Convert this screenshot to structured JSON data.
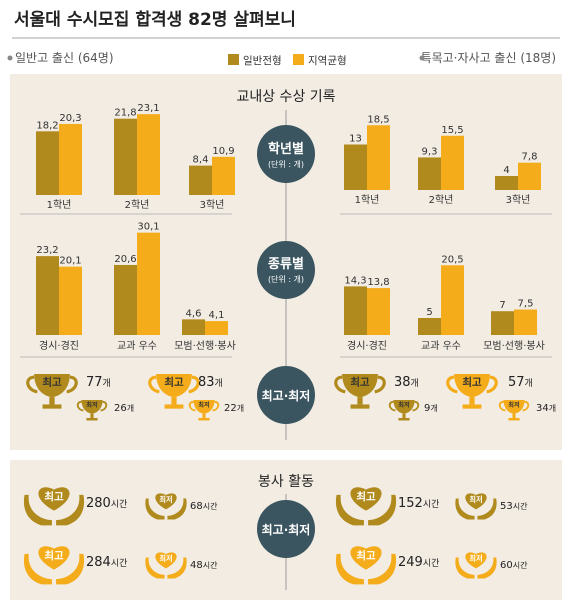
{
  "title": "서울대 수시모집 합격생 82명 살펴보니",
  "groups": {
    "left": "일반고 출신 (64명)",
    "right": "특목고·자사고 출신 (18명)"
  },
  "legend": {
    "general": "일반전형",
    "regional": "지역균형"
  },
  "colors": {
    "general": "#b08a1c",
    "regional": "#f5ac1a",
    "bubble": "#3a5560",
    "panel": "#f2ece3"
  },
  "awards_section": {
    "title": "교내상 수상 기록",
    "by_grade_label": "학년별",
    "by_type_label": "종류별",
    "unit": "(단위 : 개)",
    "max_min_label": "최고·최저"
  },
  "volunteer_section": {
    "title": "봉사 활동",
    "max_min_label": "최고·최저"
  },
  "badge_labels": {
    "max": "최고",
    "min": "최저"
  },
  "chart_data": [
    {
      "id": "left-grade",
      "type": "bar",
      "categories": [
        "1학년",
        "2학년",
        "3학년"
      ],
      "series": [
        {
          "name": "일반전형",
          "values": [
            18.2,
            21.8,
            8.4
          ],
          "labels": [
            "18,2",
            "21,8",
            "8,4"
          ]
        },
        {
          "name": "지역균형",
          "values": [
            20.3,
            23.1,
            10.9
          ],
          "labels": [
            "20,3",
            "23,1",
            "10,9"
          ]
        }
      ]
    },
    {
      "id": "right-grade",
      "type": "bar",
      "categories": [
        "1학년",
        "2학년",
        "3학년"
      ],
      "series": [
        {
          "name": "일반전형",
          "values": [
            13,
            9.3,
            4
          ],
          "labels": [
            "13",
            "9,3",
            "4"
          ]
        },
        {
          "name": "지역균형",
          "values": [
            18.5,
            15.5,
            7.8
          ],
          "labels": [
            "18,5",
            "15,5",
            "7,8"
          ]
        }
      ]
    },
    {
      "id": "left-type",
      "type": "bar",
      "categories": [
        "경시·경진",
        "교과 우수",
        "모범·선행·봉사"
      ],
      "series": [
        {
          "name": "일반전형",
          "values": [
            23.2,
            20.6,
            4.6
          ],
          "labels": [
            "23,2",
            "20,6",
            "4,6"
          ]
        },
        {
          "name": "지역균형",
          "values": [
            20.1,
            30.1,
            4.1
          ],
          "labels": [
            "20,1",
            "30,1",
            "4,1"
          ]
        }
      ]
    },
    {
      "id": "right-type",
      "type": "bar",
      "categories": [
        "경시·경진",
        "교과 우수",
        "모범·선행·봉사"
      ],
      "series": [
        {
          "name": "일반전형",
          "values": [
            14.3,
            5,
            7
          ],
          "labels": [
            "14,3",
            "5",
            "7"
          ]
        },
        {
          "name": "지역균형",
          "values": [
            13.8,
            20.5,
            7.5
          ],
          "labels": [
            "13,8",
            "20,5",
            "7,5"
          ]
        }
      ]
    }
  ],
  "trophies": {
    "left": {
      "general": {
        "max": "77",
        "min": "26"
      },
      "regional": {
        "max": "83",
        "min": "22"
      }
    },
    "right": {
      "general": {
        "max": "38",
        "min": "9"
      },
      "regional": {
        "max": "57",
        "min": "34"
      }
    },
    "unit": "개"
  },
  "volunteer": {
    "left": {
      "general": {
        "max": "280",
        "min": "68"
      },
      "regional": {
        "max": "284",
        "min": "48"
      }
    },
    "right": {
      "general": {
        "max": "152",
        "min": "53"
      },
      "regional": {
        "max": "249",
        "min": "60"
      }
    },
    "unit": "시간"
  }
}
